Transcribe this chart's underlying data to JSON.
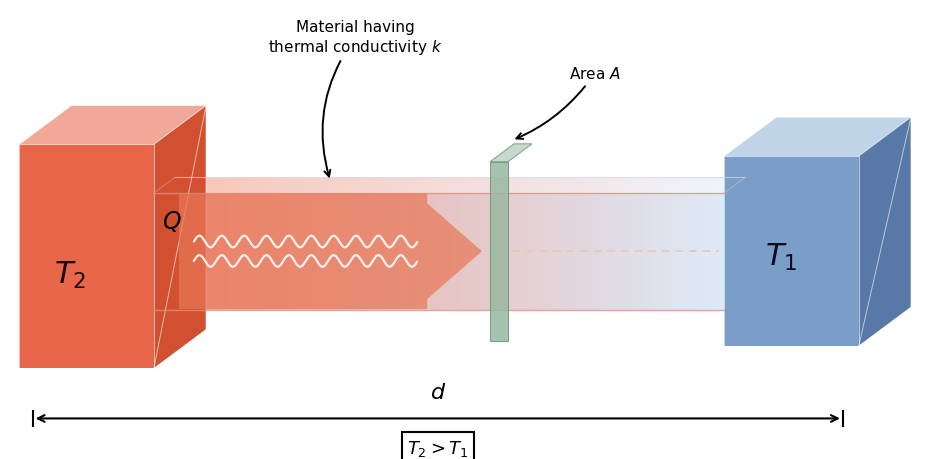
{
  "bg_color": "#ffffff",
  "hot_block_front": "#e8674a",
  "hot_block_top": "#f0a898",
  "hot_block_side": "#d05030",
  "cold_block_front": "#7a9ec8",
  "cold_block_top": "#c0d4e8",
  "cold_block_side": "#5878a8",
  "rod_hot_color": "#f0a090",
  "rod_cold_color": "#ddeaf8",
  "rod_top_hot": "#f8c0b0",
  "rod_top_cold": "#eef4fc",
  "cross_color": "#98b8a0",
  "cross_edge": "#6a9878",
  "arrow_color": "#e87858",
  "T2_label": "$T_2$",
  "T1_label": "$T_1$",
  "Q_label": "$Q$",
  "d_label": "$d$",
  "relation_label": "$T_2 > T_1$",
  "conductivity_label": "Material having\nthermal conductivity $k$",
  "area_label": "Area $A$"
}
